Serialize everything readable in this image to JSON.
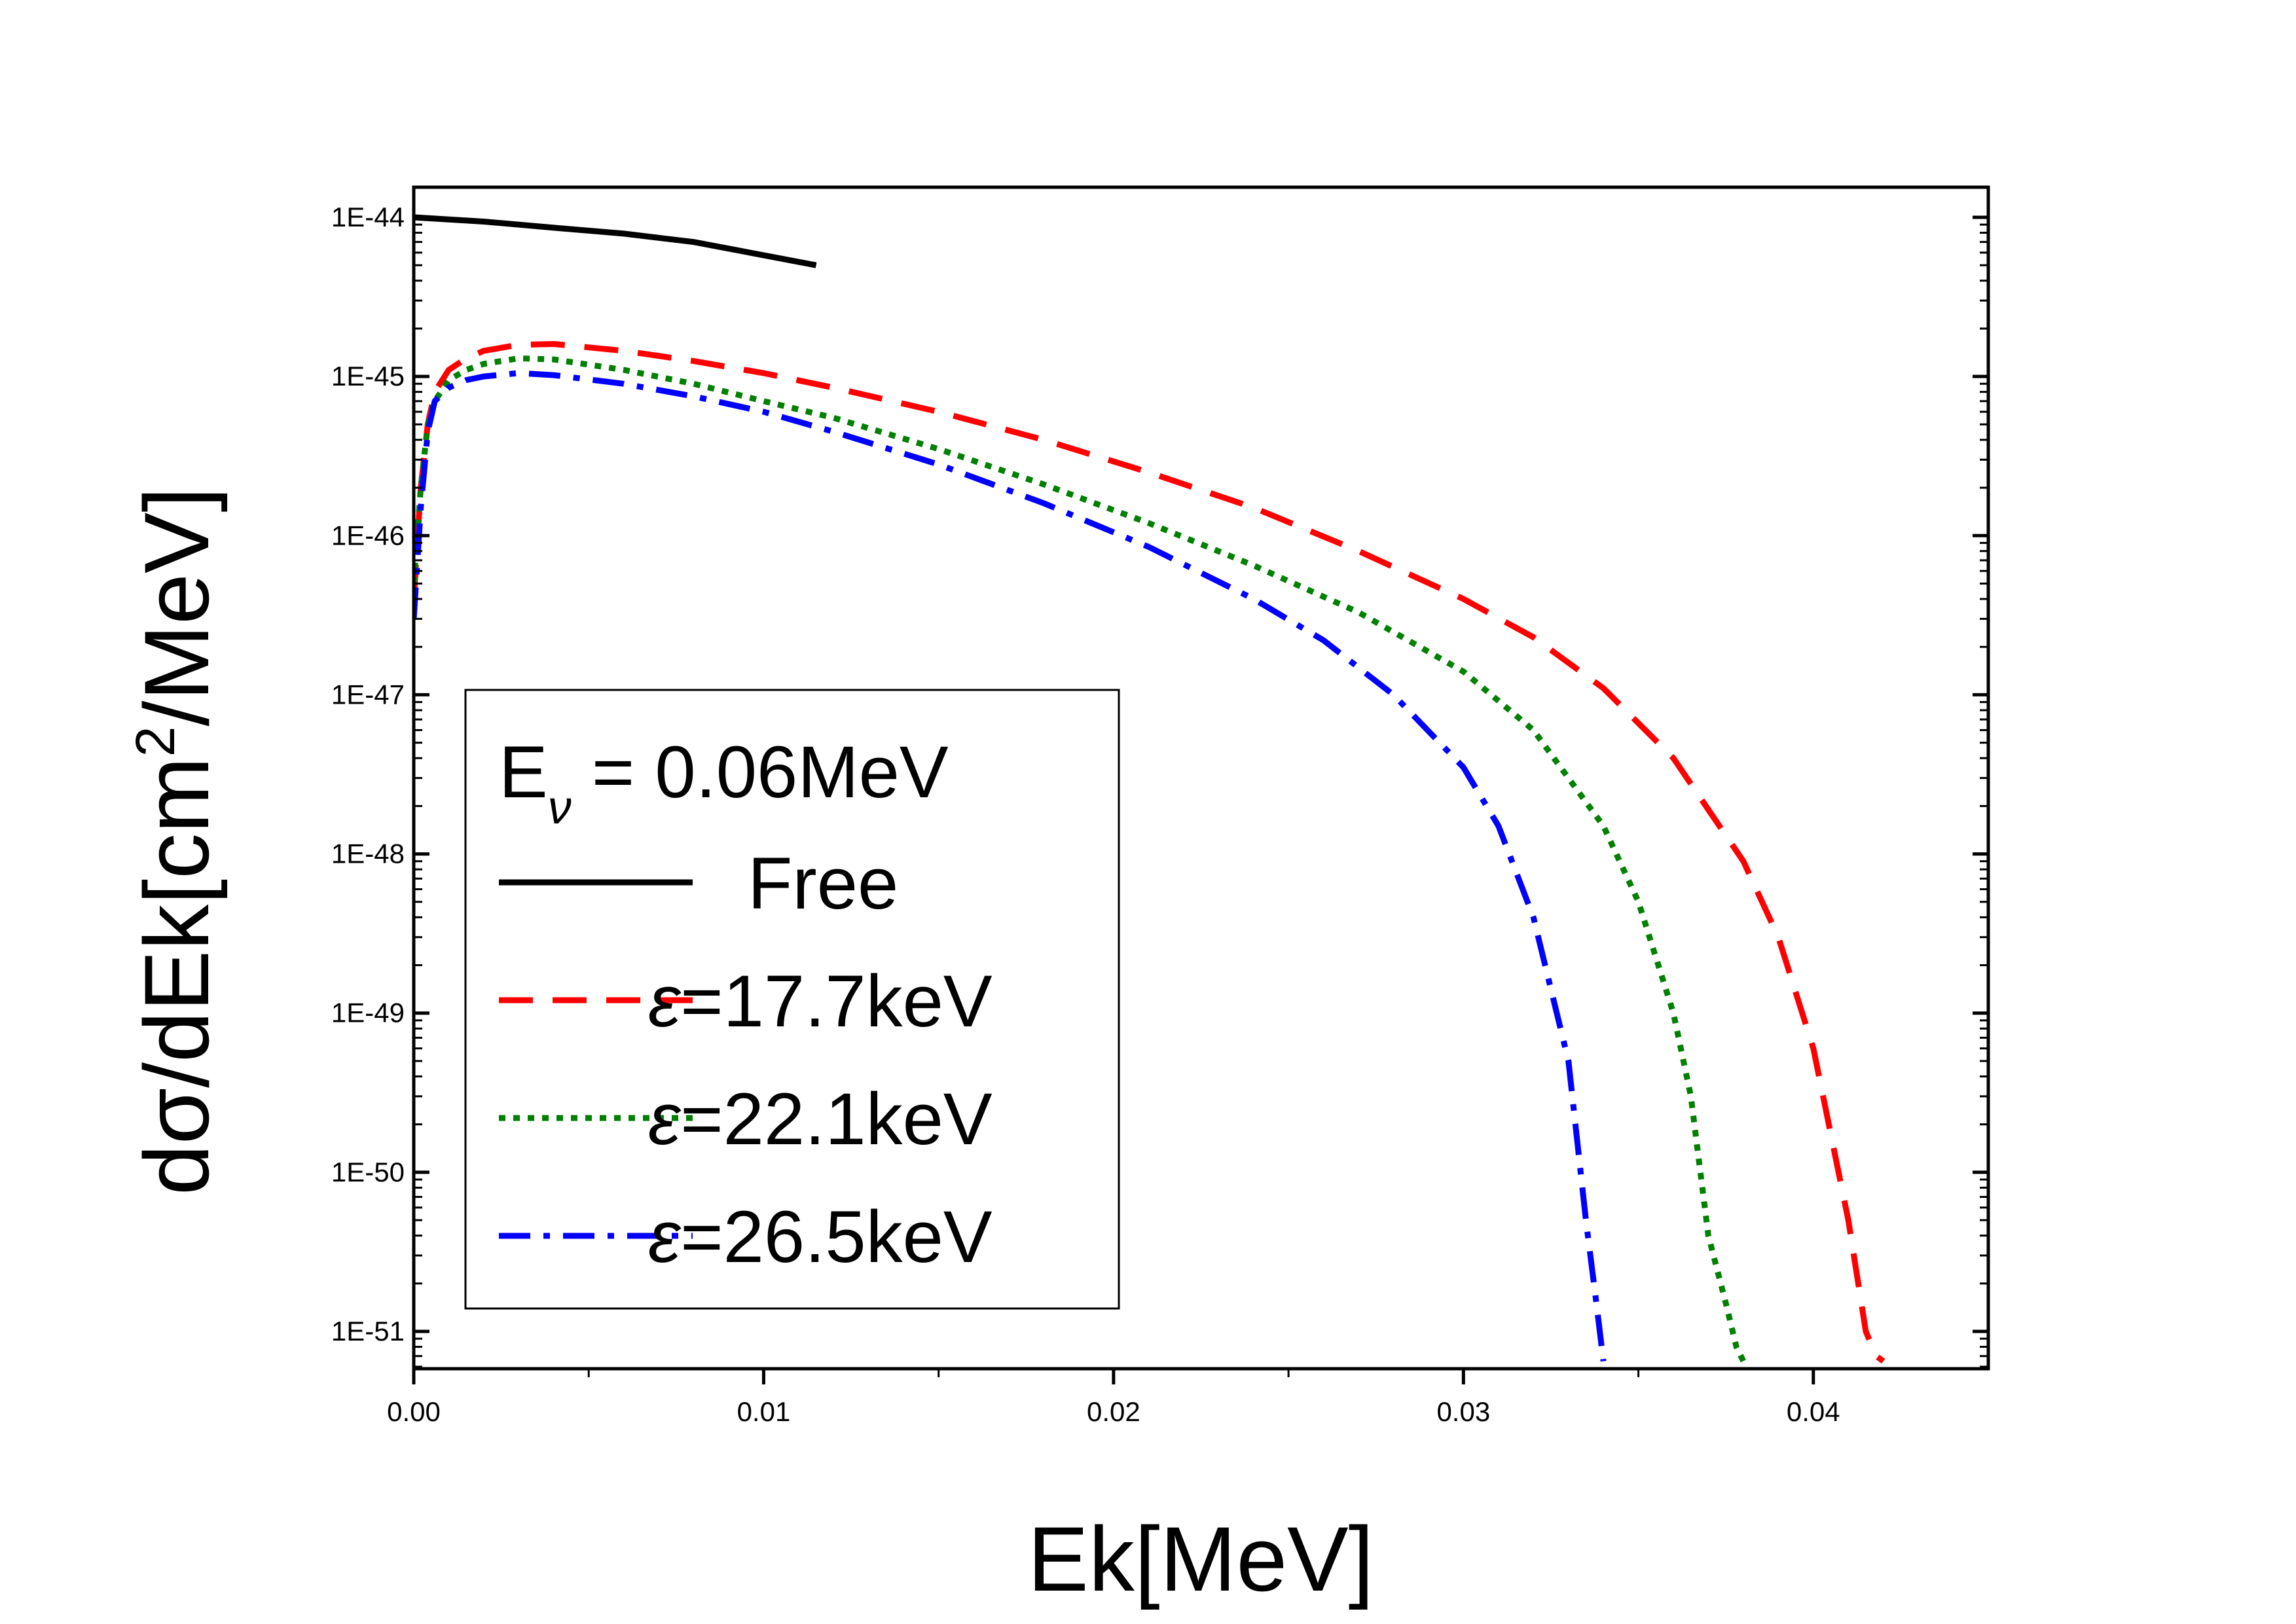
{
  "chart_data": {
    "type": "line",
    "title": "",
    "xlabel": "Ek[MeV]",
    "ylabel": "dσ/dEk[cm²/MeV]",
    "ylabel_parts": {
      "prefix": "dσ/dEk[cm",
      "sup": "2",
      "suffix": "/MeV]"
    },
    "yscale": "log",
    "xlim": [
      0.0,
      0.045
    ],
    "ylim": [
      6.5e-52,
      1.35e-44
    ],
    "x_ticks": [
      0.0,
      0.01,
      0.02,
      0.03,
      0.04
    ],
    "x_tick_labels": [
      "0.00",
      "0.01",
      "0.02",
      "0.03",
      "0.04"
    ],
    "y_ticks": [
      1e-44,
      1e-45,
      1e-46,
      1e-47,
      1e-48,
      1e-49,
      1e-50,
      1e-51
    ],
    "y_tick_labels": [
      "1E-44",
      "1E-45",
      "1E-46",
      "1E-47",
      "1E-48",
      "1E-49",
      "1E-50",
      "1E-51"
    ],
    "grid": false,
    "legend_position": "bottom-left",
    "legend_header": {
      "main": "E",
      "sub": "ν",
      "rest": " = 0.06MeV"
    },
    "series": [
      {
        "name": "Free",
        "legend_symbol": "",
        "legend_label": "Free",
        "color": "#000000",
        "dash": "solid",
        "x": [
          0.0,
          0.002,
          0.004,
          0.006,
          0.008,
          0.0115
        ],
        "y": [
          1e-44,
          9.4e-45,
          8.6e-45,
          7.9e-45,
          7e-45,
          5e-45
        ]
      },
      {
        "name": "ε=17.7keV",
        "legend_symbol": "ε",
        "legend_label": "=17.7keV",
        "color": "#ff0000",
        "dash": "dash",
        "x": [
          0.0,
          0.0002,
          0.0004,
          0.0006,
          0.001,
          0.0015,
          0.002,
          0.003,
          0.004,
          0.006,
          0.008,
          0.01,
          0.012,
          0.015,
          0.018,
          0.021,
          0.024,
          0.027,
          0.03,
          0.032,
          0.034,
          0.036,
          0.038,
          0.039,
          0.04,
          0.041,
          0.0415,
          0.0418,
          0.042
        ],
        "y": [
          4e-47,
          2e-46,
          5e-46,
          8e-46,
          1.1e-45,
          1.3e-45,
          1.45e-45,
          1.58e-45,
          1.6e-45,
          1.45e-45,
          1.25e-45,
          1.05e-45,
          8.5e-46,
          6e-46,
          4e-46,
          2.5e-46,
          1.5e-46,
          8e-47,
          4e-47,
          2.3e-47,
          1.1e-47,
          4e-48,
          9e-49,
          3e-49,
          6e-50,
          5e-51,
          1e-51,
          7e-52,
          6.5e-52
        ]
      },
      {
        "name": "ε=22.1keV",
        "legend_symbol": "ε",
        "legend_label": "=22.1keV",
        "color": "#008000",
        "dash": "dot",
        "x": [
          0.0,
          0.0002,
          0.0004,
          0.0006,
          0.001,
          0.0015,
          0.002,
          0.003,
          0.004,
          0.006,
          0.008,
          0.01,
          0.012,
          0.015,
          0.018,
          0.021,
          0.024,
          0.027,
          0.03,
          0.032,
          0.034,
          0.035,
          0.036,
          0.0365,
          0.037,
          0.0375,
          0.0378,
          0.038
        ],
        "y": [
          5e-47,
          2e-46,
          5e-46,
          7e-46,
          9.5e-46,
          1.1e-45,
          1.2e-45,
          1.3e-45,
          1.28e-45,
          1.1e-45,
          9e-46,
          7e-46,
          5.5e-46,
          3.5e-46,
          2.1e-46,
          1.2e-46,
          6.5e-47,
          3.3e-47,
          1.4e-47,
          6e-48,
          1.5e-48,
          5e-49,
          1e-49,
          3e-50,
          4e-51,
          1.5e-51,
          8e-52,
          6.5e-52
        ]
      },
      {
        "name": "ε=26.5keV",
        "legend_symbol": "ε",
        "legend_label": "=26.5keV",
        "color": "#0000ff",
        "dash": "dashdot",
        "x": [
          0.0,
          0.0002,
          0.0004,
          0.0006,
          0.001,
          0.0015,
          0.002,
          0.003,
          0.004,
          0.006,
          0.008,
          0.01,
          0.012,
          0.015,
          0.018,
          0.021,
          0.024,
          0.026,
          0.028,
          0.03,
          0.031,
          0.032,
          0.033,
          0.0335,
          0.0338,
          0.034
        ],
        "y": [
          3e-47,
          1.5e-46,
          4.5e-46,
          7e-46,
          8.5e-46,
          9.5e-46,
          1e-45,
          1.05e-45,
          1.02e-45,
          9e-46,
          7.5e-46,
          6e-46,
          4.5e-46,
          2.8e-46,
          1.6e-46,
          8.5e-47,
          4e-47,
          2.2e-47,
          1e-47,
          3.5e-48,
          1.5e-48,
          4e-49,
          5e-50,
          5e-51,
          1.5e-51,
          6.5e-52
        ]
      }
    ]
  }
}
